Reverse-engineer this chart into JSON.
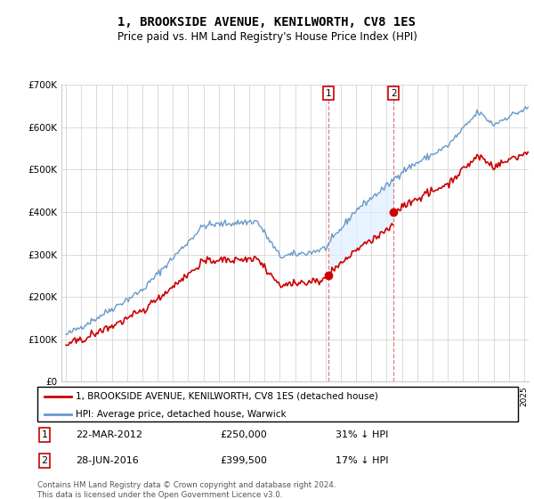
{
  "title": "1, BROOKSIDE AVENUE, KENILWORTH, CV8 1ES",
  "subtitle": "Price paid vs. HM Land Registry's House Price Index (HPI)",
  "legend_label_red": "1, BROOKSIDE AVENUE, KENILWORTH, CV8 1ES (detached house)",
  "legend_label_blue": "HPI: Average price, detached house, Warwick",
  "footnote": "Contains HM Land Registry data © Crown copyright and database right 2024.\nThis data is licensed under the Open Government Licence v3.0.",
  "sale1_date": "22-MAR-2012",
  "sale1_price": "£250,000",
  "sale1_hpi": "31% ↓ HPI",
  "sale2_date": "28-JUN-2016",
  "sale2_price": "£399,500",
  "sale2_hpi": "17% ↓ HPI",
  "sale1_value": 250000,
  "sale2_value": 399500,
  "sale1_year": 2012.21,
  "sale2_year": 2016.46,
  "ylim": [
    0,
    700000
  ],
  "xlim_start": 1994.7,
  "xlim_end": 2025.3,
  "yticks": [
    0,
    100000,
    200000,
    300000,
    400000,
    500000,
    600000,
    700000
  ],
  "color_red": "#cc0000",
  "color_blue": "#6699cc",
  "color_shade": "#ddeeff",
  "grid_color": "#cccccc",
  "dashed_color": "#dd6666"
}
